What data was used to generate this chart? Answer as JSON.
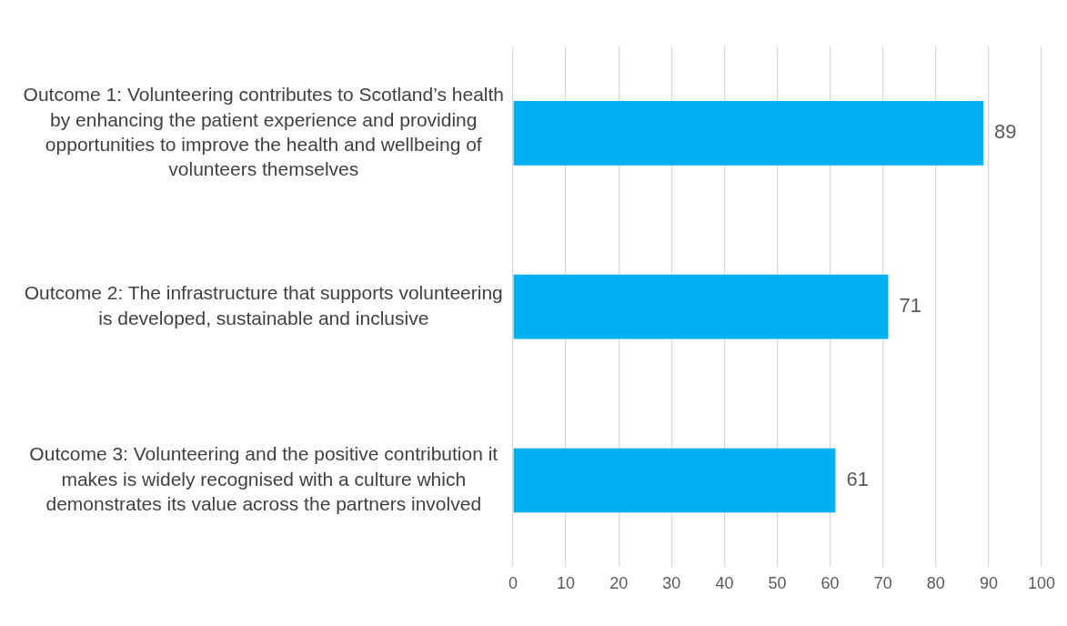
{
  "chart_data": {
    "type": "bar",
    "orientation": "horizontal",
    "categories": [
      "Outcome 1: Volunteering contributes to Scotland’s health by enhancing the patient experience and providing opportunities to improve the health and wellbeing of volunteers themselves",
      "Outcome 2: The infrastructure that supports volunteering is developed, sustainable and inclusive",
      "Outcome 3: Volunteering and the positive contribution it makes is widely recognised with a culture which demonstrates its value across the partners involved"
    ],
    "values": [
      89,
      71,
      61
    ],
    "color": "#00b0f0",
    "xlim": [
      0,
      100
    ],
    "xticks": [
      0,
      10,
      20,
      30,
      40,
      50,
      60,
      70,
      80,
      90,
      100
    ],
    "grid": "x",
    "data_labels": true,
    "legend": false
  }
}
